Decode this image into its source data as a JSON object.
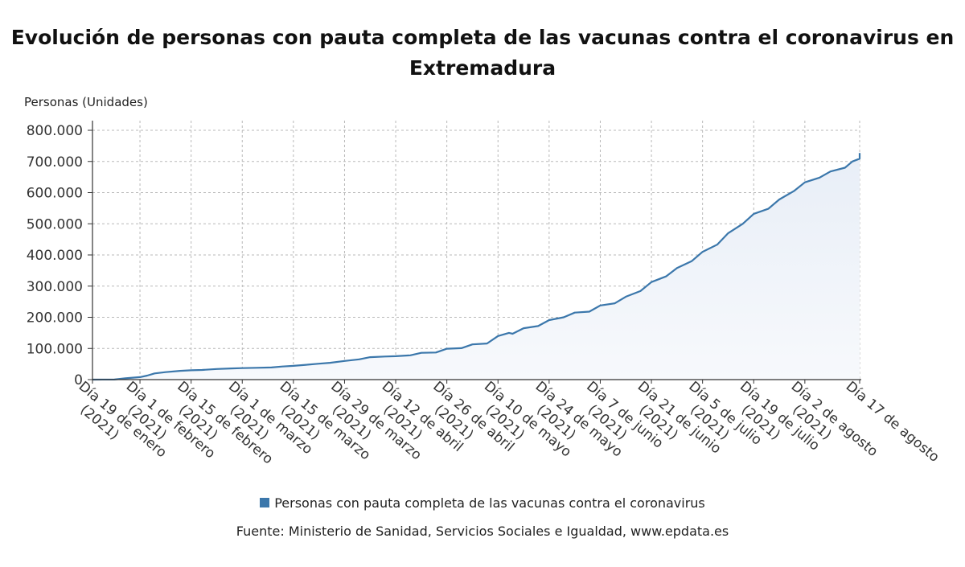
{
  "title_line1": "Evolución de personas con pauta completa de las vacunas contra el coronavirus en",
  "title_line2": "Extremadura",
  "colors": {
    "line": "#3b77ab",
    "area_top": "#e8eef7",
    "area_bottom": "#f7f9fc",
    "grid": "#b8b8b8"
  },
  "legend": {
    "label": "Personas con pauta completa de las vacunas contra el coronavirus",
    "swatch_color": "#3b77ab"
  },
  "source": "Fuente: Ministerio de Sanidad, Servicios Sociales e Igualdad, www.epdata.es",
  "chart_data": {
    "type": "area",
    "ylabel": "Personas (Unidades)",
    "ylim": [
      0,
      800000
    ],
    "yticks": [
      0,
      100000,
      200000,
      300000,
      400000,
      500000,
      600000,
      700000,
      800000
    ],
    "ytick_labels": [
      "0",
      "100.000",
      "200.000",
      "300.000",
      "400.000",
      "500.000",
      "600.000",
      "700.000",
      "800.000"
    ],
    "xlim": [
      "2021-01-19",
      "2021-08-17"
    ],
    "xticks": [
      {
        "date": "2021-01-19",
        "label": "Día 19 de enero (2021)"
      },
      {
        "date": "2021-02-01",
        "label": "Día 1 de febrero (2021)"
      },
      {
        "date": "2021-02-15",
        "label": "Día 15 de febrero (2021)"
      },
      {
        "date": "2021-03-01",
        "label": "Día 1 de marzo (2021)"
      },
      {
        "date": "2021-03-15",
        "label": "Día 15 de marzo (2021)"
      },
      {
        "date": "2021-03-29",
        "label": "Día 29 de marzo (2021)"
      },
      {
        "date": "2021-04-12",
        "label": "Día 12 de abril (2021)"
      },
      {
        "date": "2021-04-26",
        "label": "Día 26 de abril (2021)"
      },
      {
        "date": "2021-05-10",
        "label": "Día 10 de mayo (2021)"
      },
      {
        "date": "2021-05-24",
        "label": "Día 24 de mayo (2021)"
      },
      {
        "date": "2021-06-07",
        "label": "Día 7 de junio (2021)"
      },
      {
        "date": "2021-06-21",
        "label": "Día 21 de junio (2021)"
      },
      {
        "date": "2021-07-05",
        "label": "Día 5 de julio (2021)"
      },
      {
        "date": "2021-07-19",
        "label": "Día 19 de julio (2021)"
      },
      {
        "date": "2021-08-02",
        "label": "Día 2 de agosto (2021)"
      },
      {
        "date": "2021-08-17",
        "label": "Día 17 de agosto"
      }
    ],
    "grid": true,
    "legend_position": "bottom",
    "series": [
      {
        "name": "Personas con pauta completa de las vacunas contra el coronavirus",
        "points": [
          [
            "2021-01-19",
            0
          ],
          [
            "2021-01-25",
            200
          ],
          [
            "2021-01-28",
            4000
          ],
          [
            "2021-02-01",
            8000
          ],
          [
            "2021-02-03",
            13000
          ],
          [
            "2021-02-05",
            20000
          ],
          [
            "2021-02-08",
            24000
          ],
          [
            "2021-02-12",
            28000
          ],
          [
            "2021-02-15",
            30000
          ],
          [
            "2021-02-18",
            31000
          ],
          [
            "2021-02-22",
            34000
          ],
          [
            "2021-02-26",
            36000
          ],
          [
            "2021-03-01",
            37000
          ],
          [
            "2021-03-05",
            38000
          ],
          [
            "2021-03-09",
            39000
          ],
          [
            "2021-03-12",
            42000
          ],
          [
            "2021-03-15",
            44000
          ],
          [
            "2021-03-19",
            48000
          ],
          [
            "2021-03-22",
            51000
          ],
          [
            "2021-03-25",
            54000
          ],
          [
            "2021-03-29",
            60000
          ],
          [
            "2021-04-02",
            65000
          ],
          [
            "2021-04-05",
            72000
          ],
          [
            "2021-04-09",
            74000
          ],
          [
            "2021-04-12",
            75000
          ],
          [
            "2021-04-16",
            78000
          ],
          [
            "2021-04-19",
            86000
          ],
          [
            "2021-04-23",
            87000
          ],
          [
            "2021-04-26",
            99000
          ],
          [
            "2021-04-30",
            101000
          ],
          [
            "2021-05-03",
            113000
          ],
          [
            "2021-05-07",
            116000
          ],
          [
            "2021-05-10",
            140000
          ],
          [
            "2021-05-13",
            150000
          ],
          [
            "2021-05-14",
            147000
          ],
          [
            "2021-05-17",
            165000
          ],
          [
            "2021-05-21",
            172000
          ],
          [
            "2021-05-24",
            191000
          ],
          [
            "2021-05-28",
            200000
          ],
          [
            "2021-05-31",
            215000
          ],
          [
            "2021-06-04",
            218000
          ],
          [
            "2021-06-07",
            238000
          ],
          [
            "2021-06-11",
            245000
          ],
          [
            "2021-06-14",
            266000
          ],
          [
            "2021-06-18",
            284000
          ],
          [
            "2021-06-21",
            313000
          ],
          [
            "2021-06-25",
            331000
          ],
          [
            "2021-06-28",
            358000
          ],
          [
            "2021-07-02",
            380000
          ],
          [
            "2021-07-05",
            410000
          ],
          [
            "2021-07-09",
            433000
          ],
          [
            "2021-07-12",
            470000
          ],
          [
            "2021-07-16",
            500000
          ],
          [
            "2021-07-19",
            532000
          ],
          [
            "2021-07-23",
            548000
          ],
          [
            "2021-07-26",
            578000
          ],
          [
            "2021-07-30",
            605000
          ],
          [
            "2021-08-02",
            633000
          ],
          [
            "2021-08-06",
            648000
          ],
          [
            "2021-08-09",
            668000
          ],
          [
            "2021-08-13",
            680000
          ],
          [
            "2021-08-15",
            700000
          ],
          [
            "2021-08-17",
            709000
          ],
          [
            "2021-08-20",
            717000
          ],
          [
            "2021-08-23",
            727000
          ]
        ]
      }
    ]
  }
}
